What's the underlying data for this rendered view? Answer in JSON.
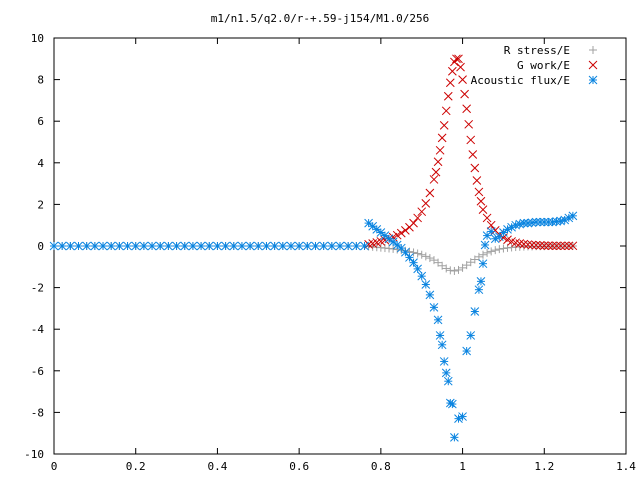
{
  "chart_data": {
    "type": "scatter",
    "title": "m1/n1.5/q2.0/r-+.59-j154/M1.0/256",
    "xlabel": "",
    "ylabel": "",
    "xlim": [
      0,
      1.4
    ],
    "ylim": [
      -10,
      10
    ],
    "xticks": [
      "0",
      "0.2",
      "0.4",
      "0.6",
      "0.8",
      "1",
      "1.2",
      "1.4"
    ],
    "yticks": [
      "10",
      "8",
      "6",
      "4",
      "2",
      "0",
      "-2",
      "-4",
      "-6",
      "-8",
      "-10"
    ],
    "grid": false,
    "legend_position": "top-right",
    "series": [
      {
        "name": "R stress/E",
        "marker": "plus",
        "color": "#a0a0a0",
        "points": [
          [
            0.0,
            0
          ],
          [
            0.02,
            0
          ],
          [
            0.04,
            0
          ],
          [
            0.06,
            0
          ],
          [
            0.08,
            0
          ],
          [
            0.1,
            0
          ],
          [
            0.12,
            0
          ],
          [
            0.14,
            0
          ],
          [
            0.16,
            0
          ],
          [
            0.18,
            0
          ],
          [
            0.2,
            0
          ],
          [
            0.22,
            0
          ],
          [
            0.24,
            0
          ],
          [
            0.26,
            0
          ],
          [
            0.28,
            0
          ],
          [
            0.3,
            0
          ],
          [
            0.32,
            0
          ],
          [
            0.34,
            0
          ],
          [
            0.36,
            0
          ],
          [
            0.38,
            0
          ],
          [
            0.4,
            0
          ],
          [
            0.42,
            0
          ],
          [
            0.44,
            0
          ],
          [
            0.46,
            0
          ],
          [
            0.48,
            0
          ],
          [
            0.5,
            0
          ],
          [
            0.52,
            0
          ],
          [
            0.54,
            0
          ],
          [
            0.56,
            0
          ],
          [
            0.58,
            0
          ],
          [
            0.6,
            0
          ],
          [
            0.62,
            0
          ],
          [
            0.64,
            0
          ],
          [
            0.66,
            0
          ],
          [
            0.68,
            0
          ],
          [
            0.7,
            0
          ],
          [
            0.72,
            0
          ],
          [
            0.74,
            0
          ],
          [
            0.76,
            0
          ],
          [
            0.77,
            -0.02
          ],
          [
            0.78,
            -0.04
          ],
          [
            0.79,
            -0.06
          ],
          [
            0.8,
            -0.08
          ],
          [
            0.81,
            -0.1
          ],
          [
            0.82,
            -0.12
          ],
          [
            0.83,
            -0.14
          ],
          [
            0.84,
            -0.17
          ],
          [
            0.85,
            -0.2
          ],
          [
            0.86,
            -0.23
          ],
          [
            0.87,
            -0.27
          ],
          [
            0.88,
            -0.31
          ],
          [
            0.89,
            -0.36
          ],
          [
            0.9,
            -0.42
          ],
          [
            0.91,
            -0.5
          ],
          [
            0.92,
            -0.58
          ],
          [
            0.93,
            -0.68
          ],
          [
            0.94,
            -0.8
          ],
          [
            0.95,
            -0.95
          ],
          [
            0.96,
            -1.08
          ],
          [
            0.97,
            -1.17
          ],
          [
            0.98,
            -1.2
          ],
          [
            0.99,
            -1.15
          ],
          [
            1.0,
            -1.05
          ],
          [
            1.01,
            -0.92
          ],
          [
            1.02,
            -0.78
          ],
          [
            1.03,
            -0.65
          ],
          [
            1.04,
            -0.52
          ],
          [
            1.05,
            -0.42
          ],
          [
            1.06,
            -0.33
          ],
          [
            1.07,
            -0.26
          ],
          [
            1.08,
            -0.2
          ],
          [
            1.09,
            -0.15
          ],
          [
            1.1,
            -0.12
          ],
          [
            1.11,
            -0.09
          ],
          [
            1.12,
            -0.07
          ],
          [
            1.13,
            -0.05
          ],
          [
            1.14,
            -0.04
          ],
          [
            1.15,
            -0.03
          ],
          [
            1.16,
            -0.02
          ],
          [
            1.17,
            -0.02
          ],
          [
            1.18,
            -0.01
          ],
          [
            1.19,
            -0.01
          ],
          [
            1.2,
            -0.01
          ],
          [
            1.21,
            0
          ],
          [
            1.22,
            0
          ],
          [
            1.23,
            0
          ],
          [
            1.24,
            0
          ],
          [
            1.25,
            0
          ],
          [
            1.26,
            0
          ],
          [
            1.27,
            0
          ]
        ]
      },
      {
        "name": "G work/E",
        "marker": "cross",
        "color": "#cc0000",
        "points": [
          [
            0.77,
            0.08
          ],
          [
            0.78,
            0.12
          ],
          [
            0.79,
            0.17
          ],
          [
            0.8,
            0.22
          ],
          [
            0.81,
            0.28
          ],
          [
            0.82,
            0.35
          ],
          [
            0.83,
            0.43
          ],
          [
            0.84,
            0.52
          ],
          [
            0.85,
            0.62
          ],
          [
            0.86,
            0.75
          ],
          [
            0.87,
            0.9
          ],
          [
            0.88,
            1.1
          ],
          [
            0.89,
            1.35
          ],
          [
            0.9,
            1.65
          ],
          [
            0.91,
            2.05
          ],
          [
            0.92,
            2.55
          ],
          [
            0.93,
            3.2
          ],
          [
            0.935,
            3.55
          ],
          [
            0.94,
            4.05
          ],
          [
            0.945,
            4.6
          ],
          [
            0.95,
            5.2
          ],
          [
            0.955,
            5.8
          ],
          [
            0.96,
            6.5
          ],
          [
            0.965,
            7.2
          ],
          [
            0.97,
            7.85
          ],
          [
            0.975,
            8.4
          ],
          [
            0.98,
            8.85
          ],
          [
            0.985,
            9.0
          ],
          [
            0.99,
            9.0
          ],
          [
            0.995,
            8.6
          ],
          [
            1.0,
            8.0
          ],
          [
            1.005,
            7.3
          ],
          [
            1.01,
            6.6
          ],
          [
            1.015,
            5.85
          ],
          [
            1.02,
            5.1
          ],
          [
            1.025,
            4.4
          ],
          [
            1.03,
            3.75
          ],
          [
            1.035,
            3.15
          ],
          [
            1.04,
            2.6
          ],
          [
            1.045,
            2.15
          ],
          [
            1.05,
            1.75
          ],
          [
            1.06,
            1.35
          ],
          [
            1.07,
            1.0
          ],
          [
            1.08,
            0.75
          ],
          [
            1.09,
            0.55
          ],
          [
            1.1,
            0.4
          ],
          [
            1.11,
            0.3
          ],
          [
            1.12,
            0.22
          ],
          [
            1.13,
            0.16
          ],
          [
            1.14,
            0.12
          ],
          [
            1.15,
            0.09
          ],
          [
            1.16,
            0.07
          ],
          [
            1.17,
            0.05
          ],
          [
            1.18,
            0.04
          ],
          [
            1.19,
            0.03
          ],
          [
            1.2,
            0.02
          ],
          [
            1.21,
            0.02
          ],
          [
            1.22,
            0.01
          ],
          [
            1.23,
            0.01
          ],
          [
            1.24,
            0.01
          ],
          [
            1.25,
            0.01
          ],
          [
            1.26,
            0.01
          ],
          [
            1.27,
            0.01
          ]
        ]
      },
      {
        "name": "Acoustic flux/E",
        "marker": "star",
        "color": "#0a84e0",
        "points": [
          [
            0.0,
            0
          ],
          [
            0.02,
            0
          ],
          [
            0.04,
            0
          ],
          [
            0.06,
            0
          ],
          [
            0.08,
            0
          ],
          [
            0.1,
            0
          ],
          [
            0.12,
            0
          ],
          [
            0.14,
            0
          ],
          [
            0.16,
            0
          ],
          [
            0.18,
            0
          ],
          [
            0.2,
            0
          ],
          [
            0.22,
            0
          ],
          [
            0.24,
            0
          ],
          [
            0.26,
            0
          ],
          [
            0.28,
            0
          ],
          [
            0.3,
            0
          ],
          [
            0.32,
            0
          ],
          [
            0.34,
            0
          ],
          [
            0.36,
            0
          ],
          [
            0.38,
            0
          ],
          [
            0.4,
            0
          ],
          [
            0.42,
            0
          ],
          [
            0.44,
            0
          ],
          [
            0.46,
            0
          ],
          [
            0.48,
            0
          ],
          [
            0.5,
            0
          ],
          [
            0.52,
            0
          ],
          [
            0.54,
            0
          ],
          [
            0.56,
            0
          ],
          [
            0.58,
            0
          ],
          [
            0.6,
            0
          ],
          [
            0.62,
            0
          ],
          [
            0.64,
            0
          ],
          [
            0.66,
            0
          ],
          [
            0.68,
            0
          ],
          [
            0.7,
            0
          ],
          [
            0.72,
            0
          ],
          [
            0.74,
            0
          ],
          [
            0.76,
            0
          ],
          [
            0.77,
            1.1
          ],
          [
            0.78,
            0.95
          ],
          [
            0.79,
            0.8
          ],
          [
            0.8,
            0.65
          ],
          [
            0.81,
            0.5
          ],
          [
            0.82,
            0.35
          ],
          [
            0.83,
            0.2
          ],
          [
            0.84,
            0.05
          ],
          [
            0.85,
            -0.1
          ],
          [
            0.86,
            -0.3
          ],
          [
            0.87,
            -0.55
          ],
          [
            0.88,
            -0.8
          ],
          [
            0.89,
            -1.1
          ],
          [
            0.9,
            -1.45
          ],
          [
            0.91,
            -1.85
          ],
          [
            0.92,
            -2.35
          ],
          [
            0.93,
            -2.95
          ],
          [
            0.94,
            -3.55
          ],
          [
            0.945,
            -4.3
          ],
          [
            0.95,
            -4.75
          ],
          [
            0.955,
            -5.55
          ],
          [
            0.96,
            -6.1
          ],
          [
            0.965,
            -6.5
          ],
          [
            0.97,
            -7.55
          ],
          [
            0.975,
            -7.6
          ],
          [
            0.98,
            -9.2
          ],
          [
            0.99,
            -8.3
          ],
          [
            1.0,
            -8.2
          ],
          [
            1.01,
            -5.05
          ],
          [
            1.02,
            -4.3
          ],
          [
            1.03,
            -3.15
          ],
          [
            1.04,
            -2.1
          ],
          [
            1.045,
            -1.7
          ],
          [
            1.05,
            -0.85
          ],
          [
            1.055,
            0.05
          ],
          [
            1.06,
            0.5
          ],
          [
            1.07,
            0.7
          ],
          [
            1.08,
            0.35
          ],
          [
            1.09,
            0.45
          ],
          [
            1.1,
            0.65
          ],
          [
            1.11,
            0.8
          ],
          [
            1.12,
            0.9
          ],
          [
            1.13,
            1.0
          ],
          [
            1.14,
            1.05
          ],
          [
            1.15,
            1.1
          ],
          [
            1.16,
            1.1
          ],
          [
            1.17,
            1.12
          ],
          [
            1.18,
            1.15
          ],
          [
            1.19,
            1.15
          ],
          [
            1.2,
            1.15
          ],
          [
            1.21,
            1.15
          ],
          [
            1.22,
            1.15
          ],
          [
            1.23,
            1.18
          ],
          [
            1.24,
            1.2
          ],
          [
            1.25,
            1.25
          ],
          [
            1.26,
            1.35
          ],
          [
            1.27,
            1.45
          ]
        ]
      }
    ]
  }
}
